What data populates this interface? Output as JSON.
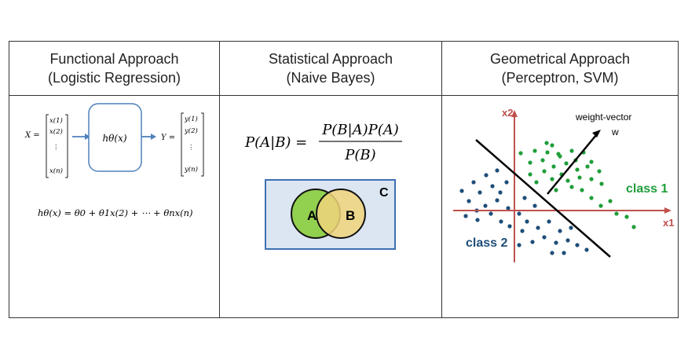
{
  "columns": [
    {
      "title": "Functional Approach",
      "subtitle": "(Logistic Regression)"
    },
    {
      "title": "Statistical Approach",
      "subtitle": "(Naive Bayes)"
    },
    {
      "title": "Geometrical Approach",
      "subtitle": "(Perceptron, SVM)"
    }
  ],
  "functional": {
    "x_var": "X =",
    "x_items": [
      "x(1)",
      "x(2)",
      "⋮",
      "x(n)"
    ],
    "model_label": "hθ(x)",
    "y_var": "Y =",
    "y_items": [
      "y(1)",
      "y(2)",
      "⋮",
      "y(n)"
    ],
    "hypothesis": "hθ(x) = θ0 + θ1x(2) + ⋯ + θnx(n)"
  },
  "statistical": {
    "formula_lhs": "P(A|B) =",
    "formula_num": "P(B|A)P(A)",
    "formula_den": "P(B)",
    "venn": {
      "a": "A",
      "b": "B",
      "c": "C",
      "colors": {
        "a": "#92d050",
        "b": "#f0d37a",
        "c": "#dce6f2",
        "border": "#3e6fb0"
      }
    }
  },
  "geometrical": {
    "x1_label": "x1",
    "x2_label": "x2",
    "weight_label": "weight-vector",
    "w_label": "w",
    "class1_label": "class 1",
    "class2_label": "class 2",
    "colors": {
      "axis": "#c0504d",
      "class1": "#1f9e3a",
      "class2": "#1f4e79",
      "line": "#000000"
    }
  }
}
